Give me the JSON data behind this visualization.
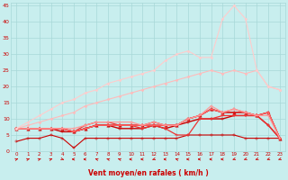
{
  "xlabel": "Vent moyen/en rafales ( km/h )",
  "xlim": [
    -0.5,
    23.5
  ],
  "ylim": [
    0,
    46
  ],
  "yticks": [
    0,
    5,
    10,
    15,
    20,
    25,
    30,
    35,
    40,
    45
  ],
  "xticks": [
    0,
    1,
    2,
    3,
    4,
    5,
    6,
    7,
    8,
    9,
    10,
    11,
    12,
    13,
    14,
    15,
    16,
    17,
    18,
    19,
    20,
    21,
    22,
    23
  ],
  "bg_color": "#c8eeee",
  "grid_color": "#a8d8d8",
  "series": [
    {
      "x": [
        0,
        1,
        2,
        3,
        4,
        5,
        6,
        7,
        8,
        9,
        10,
        11,
        12,
        13,
        14,
        15,
        16,
        17,
        18,
        19,
        20,
        21,
        22,
        23
      ],
      "y": [
        3,
        4,
        4,
        5,
        4,
        1,
        4,
        4,
        4,
        4,
        4,
        4,
        4,
        4,
        4,
        5,
        5,
        5,
        5,
        5,
        4,
        4,
        4,
        4
      ],
      "color": "#cc0000",
      "lw": 0.8,
      "marker": "+",
      "ms": 3
    },
    {
      "x": [
        0,
        1,
        2,
        3,
        4,
        5,
        6,
        7,
        8,
        9,
        10,
        11,
        12,
        13,
        14,
        15,
        16,
        17,
        18,
        19,
        20,
        21,
        22,
        23
      ],
      "y": [
        7,
        7,
        7,
        7,
        6,
        6,
        7,
        8,
        8,
        7,
        7,
        7,
        8,
        7,
        8,
        9,
        10,
        10,
        10,
        11,
        11,
        11,
        8,
        4
      ],
      "color": "#cc0000",
      "lw": 1.0,
      "marker": "+",
      "ms": 3
    },
    {
      "x": [
        0,
        1,
        2,
        3,
        4,
        5,
        6,
        7,
        8,
        9,
        10,
        11,
        12,
        13,
        14,
        15,
        16,
        17,
        18,
        19,
        20,
        21,
        22,
        23
      ],
      "y": [
        7,
        7,
        7,
        7,
        7,
        6,
        7,
        8,
        8,
        8,
        8,
        8,
        8,
        8,
        8,
        10,
        11,
        13,
        12,
        12,
        12,
        11,
        12,
        4
      ],
      "color": "#cc0000",
      "lw": 1.0,
      "marker": "^",
      "ms": 2.5
    },
    {
      "x": [
        0,
        1,
        2,
        3,
        4,
        5,
        6,
        7,
        8,
        9,
        10,
        11,
        12,
        13,
        14,
        15,
        16,
        17,
        18,
        19,
        20,
        21,
        22,
        23
      ],
      "y": [
        7,
        7,
        7,
        7,
        7,
        6,
        7,
        8,
        8,
        8,
        8,
        8,
        9,
        8,
        8,
        10,
        11,
        13,
        12,
        12,
        12,
        11,
        12,
        4
      ],
      "color": "#dd2222",
      "lw": 0.9,
      "marker": "+",
      "ms": 3
    },
    {
      "x": [
        0,
        1,
        2,
        3,
        4,
        5,
        6,
        7,
        8,
        9,
        10,
        11,
        12,
        13,
        14,
        15,
        16,
        17,
        18,
        19,
        20,
        21,
        22,
        23
      ],
      "y": [
        7,
        7,
        7,
        7,
        7,
        6,
        8,
        9,
        9,
        8,
        8,
        7,
        8,
        7,
        5,
        5,
        10,
        10,
        11,
        11,
        11,
        11,
        8,
        4
      ],
      "color": "#ee3333",
      "lw": 0.9,
      "marker": "+",
      "ms": 3
    },
    {
      "x": [
        0,
        1,
        2,
        3,
        4,
        5,
        6,
        7,
        8,
        9,
        10,
        11,
        12,
        13,
        14,
        15,
        16,
        17,
        18,
        19,
        20,
        21,
        22,
        23
      ],
      "y": [
        7,
        7,
        7,
        7,
        7,
        6,
        7,
        8,
        8,
        8,
        8,
        8,
        8,
        8,
        8,
        10,
        11,
        13,
        12,
        13,
        12,
        11,
        12,
        4
      ],
      "color": "#ff6666",
      "lw": 0.9,
      "marker": "+",
      "ms": 3
    },
    {
      "x": [
        0,
        1,
        2,
        3,
        4,
        5,
        6,
        7,
        8,
        9,
        10,
        11,
        12,
        13,
        14,
        15,
        16,
        17,
        18,
        19,
        20,
        21,
        22,
        23
      ],
      "y": [
        7,
        7,
        7,
        7,
        7,
        7,
        8,
        9,
        9,
        9,
        9,
        8,
        9,
        8,
        8,
        10,
        11,
        14,
        12,
        13,
        12,
        11,
        11,
        4
      ],
      "color": "#ff9999",
      "lw": 0.9,
      "marker": "+",
      "ms": 3
    },
    {
      "x": [
        0,
        1,
        2,
        3,
        4,
        5,
        6,
        7,
        8,
        9,
        10,
        11,
        12,
        13,
        14,
        15,
        16,
        17,
        18,
        19,
        20,
        21,
        22,
        23
      ],
      "y": [
        7,
        8,
        9,
        10,
        11,
        12,
        14,
        15,
        16,
        17,
        18,
        19,
        20,
        21,
        22,
        23,
        24,
        25,
        24,
        25,
        24,
        25,
        20,
        19
      ],
      "color": "#ffbbbb",
      "lw": 0.8,
      "marker": "D",
      "ms": 1.5
    },
    {
      "x": [
        0,
        1,
        2,
        3,
        4,
        5,
        6,
        7,
        8,
        9,
        10,
        11,
        12,
        13,
        14,
        15,
        16,
        17,
        18,
        19,
        20,
        21,
        22,
        23
      ],
      "y": [
        7,
        9,
        11,
        13,
        15,
        16,
        18,
        19,
        21,
        22,
        23,
        24,
        25,
        28,
        30,
        31,
        29,
        29,
        41,
        45,
        41,
        25,
        20,
        19
      ],
      "color": "#ffcccc",
      "lw": 0.8,
      "marker": "D",
      "ms": 1.5
    }
  ],
  "arrow_color": "#cc0000",
  "arrow_angles": [
    45,
    45,
    45,
    45,
    135,
    270,
    270,
    315,
    315,
    315,
    270,
    270,
    225,
    270,
    315,
    270,
    270,
    270,
    270,
    225,
    225,
    225,
    225,
    225
  ]
}
